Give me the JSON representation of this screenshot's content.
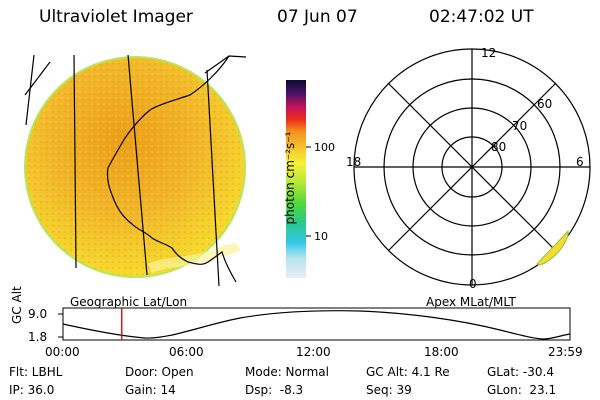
{
  "header": {
    "title": "Ultraviolet Imager",
    "date": "07 Jun 07",
    "time": "02:47:02 UT"
  },
  "colors": {
    "image_fill": "#f2b72a",
    "image_center": "#ec9e18",
    "image_edge": "#f6dc2e",
    "image_rim": "#b8e65a",
    "alt_curve": "#000000",
    "time_marker": "#d11a1a"
  },
  "colorbar": {
    "label": "photon cm⁻²s⁻¹",
    "ticks": [
      "100",
      "10"
    ],
    "scale": "log"
  },
  "geo_panel": {
    "label": "Geographic Lat/Lon"
  },
  "polar_panel": {
    "label": "Apex MLat/MLT",
    "mlt_labels": {
      "top": "12",
      "right": "6",
      "bottom": "0",
      "left": "18"
    },
    "lat_labels": [
      "60",
      "70",
      "80"
    ]
  },
  "altitude_plot": {
    "ylabel": "GC Alt",
    "y_ticks": [
      "9.0",
      "1.8"
    ],
    "x_ticks": [
      "00:00",
      "06:00",
      "12:00",
      "18:00",
      "23:59"
    ],
    "current_time_hours": 2.78
  },
  "status": {
    "flt": "Flt: LBHL",
    "ip": "IP: 36.0",
    "door": "Door: Open",
    "gain": "Gain: 14",
    "mode": "Mode: Normal",
    "dsp": "Dsp:  -8.3",
    "gc_alt": "GC Alt: 4.1 Re",
    "seq": "Seq: 39",
    "glat": "GLat: -30.4",
    "glon": "GLon:  23.1"
  }
}
